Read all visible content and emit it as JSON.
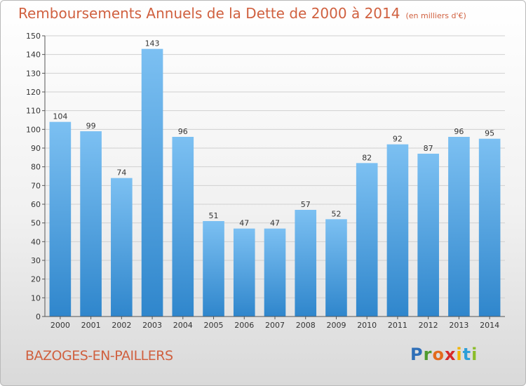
{
  "title": "Remboursements Annuels de la Dette de 2000 à 2014",
  "subtitle": "(en milliers d'€)",
  "commune": "BAZOGES-EN-PAILLERS",
  "logo": {
    "text": "Proxiti",
    "letters": [
      "P",
      "r",
      "o",
      "x",
      "i",
      "t",
      "i"
    ],
    "colors": [
      "#2e6fb8",
      "#4e9a2e",
      "#e36b1d",
      "#d62a2a",
      "#f2b400",
      "#2e9fd8",
      "#8bbd2a"
    ]
  },
  "colors": {
    "bar_light": "#7cc0f2",
    "bar_dark": "#2f86cc",
    "text": "#d0603f",
    "grid": "#d0d0d0"
  },
  "chart_data": {
    "type": "bar",
    "title": "Remboursements Annuels de la Dette de 2000 à 2014",
    "xlabel": "",
    "ylabel": "",
    "ylim": [
      0,
      150
    ],
    "yticks": [
      0,
      10,
      20,
      30,
      40,
      50,
      60,
      70,
      80,
      90,
      100,
      110,
      120,
      130,
      140,
      150
    ],
    "categories": [
      "2000",
      "2001",
      "2002",
      "2003",
      "2004",
      "2005",
      "2006",
      "2007",
      "2008",
      "2009",
      "2010",
      "2011",
      "2012",
      "2013",
      "2014"
    ],
    "values": [
      104,
      99,
      74,
      143,
      96,
      51,
      47,
      47,
      57,
      52,
      82,
      92,
      87,
      96,
      95
    ],
    "grid": true
  }
}
